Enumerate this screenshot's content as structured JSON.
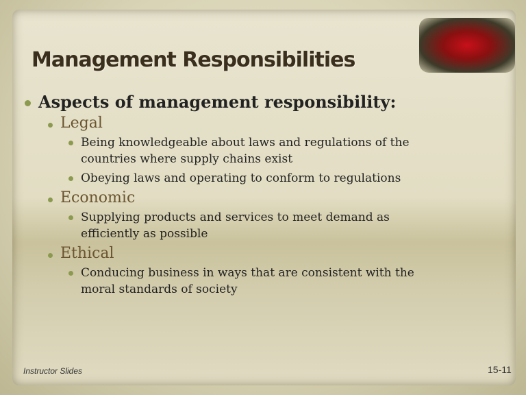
{
  "title": "Management Responsibilities",
  "bullets": [
    {
      "text": "Aspects of management responsibility:",
      "children": [
        {
          "text": "Legal",
          "children": [
            {
              "text": "Being knowledgeable about laws and regulations of the countries where supply chains exist"
            },
            {
              "text": "Obeying laws and operating to conform to regulations"
            }
          ]
        },
        {
          "text": "Economic",
          "children": [
            {
              "text": "Supplying products and services to meet demand as efficiently as possible"
            }
          ]
        },
        {
          "text": "Ethical",
          "children": [
            {
              "text": "Conducing business in ways that are consistent with the moral standards of society"
            }
          ]
        }
      ]
    }
  ],
  "footer": {
    "left": "Instructor Slides",
    "right": "15-11"
  }
}
